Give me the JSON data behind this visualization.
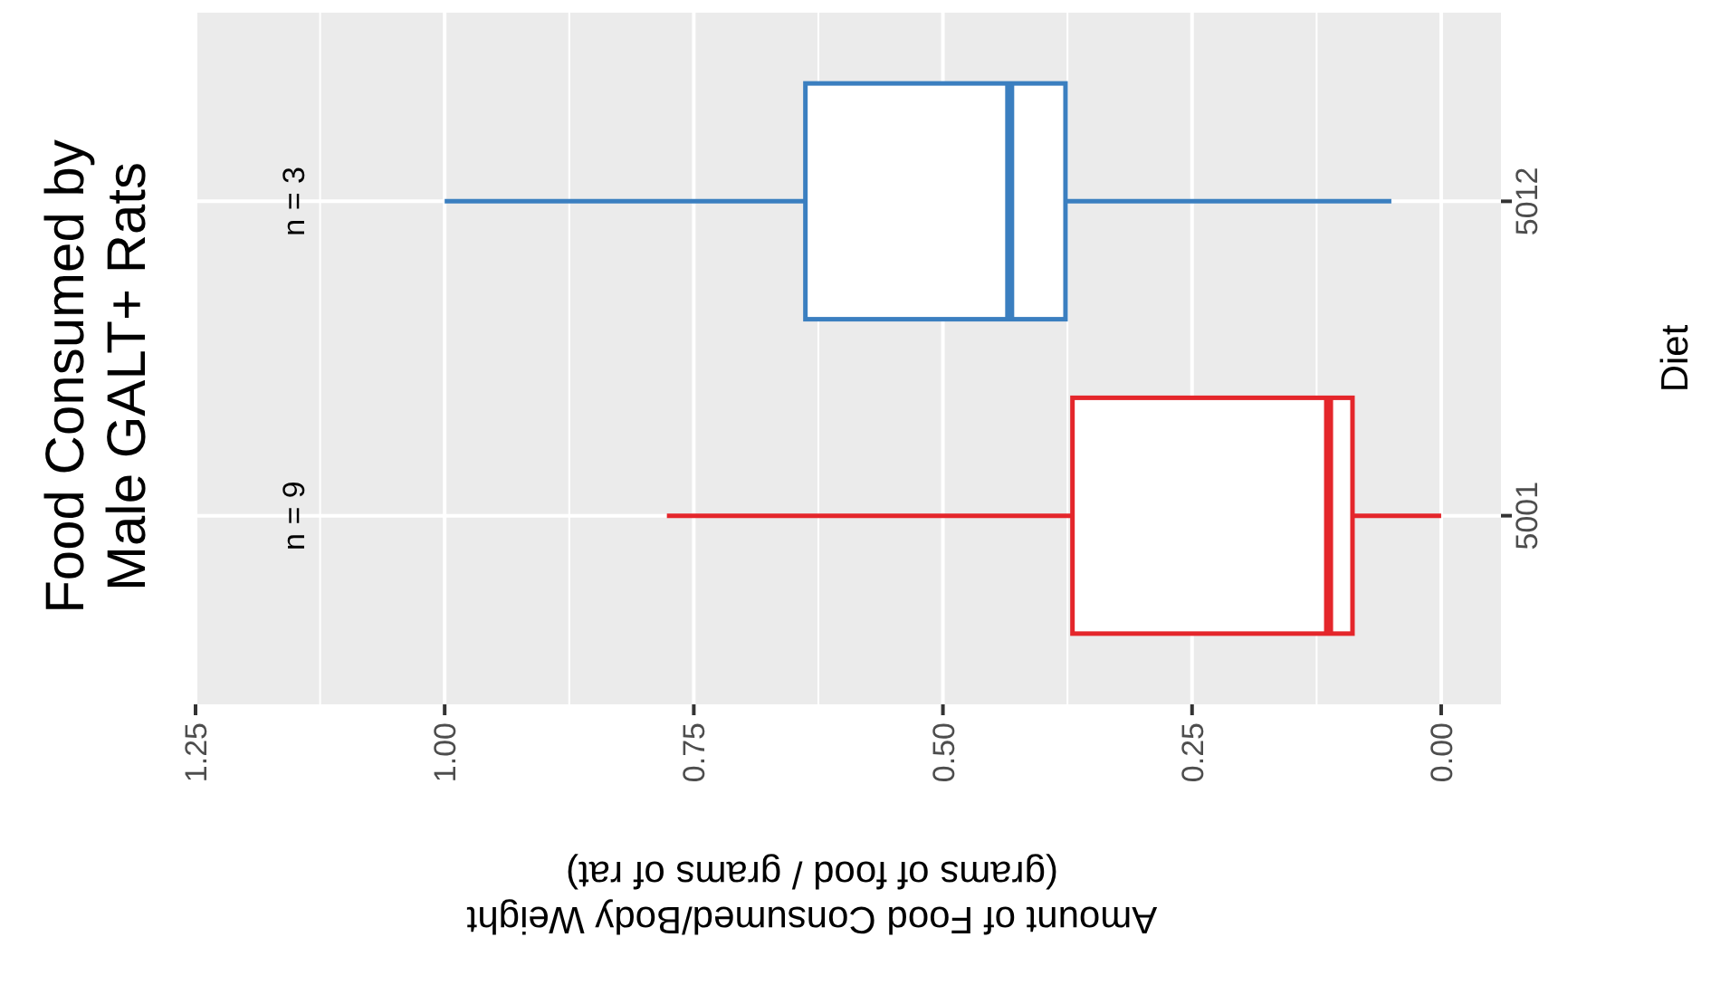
{
  "chart_data": {
    "type": "box",
    "orientation": "horizontal",
    "title": "Food Consumed by\nMale GALT+ Rats",
    "xlabel": "Amount of Food Consumed/Body Weight\n(grams of food / grams of rat)",
    "ylabel": "Diet",
    "categories": [
      "5012",
      "5001"
    ],
    "colors": [
      "#3b7fc0",
      "#e4262b"
    ],
    "boxes": [
      {
        "low": 0.05,
        "q1": 0.377,
        "median": 0.433,
        "q3": 0.638,
        "high": 1.0
      },
      {
        "low": 0.0,
        "q1": 0.089,
        "median": 0.113,
        "q3": 0.37,
        "high": 0.777
      }
    ],
    "xlim": [
      1.25,
      -0.06
    ],
    "xticks": [
      {
        "value": 1.25,
        "label": "1.25"
      },
      {
        "value": 1,
        "label": "1.00"
      },
      {
        "value": 0.75,
        "label": "0.75"
      },
      {
        "value": 0.5,
        "label": "0.50"
      },
      {
        "value": 0.25,
        "label": "0.25"
      },
      {
        "value": 0,
        "label": "0.00"
      }
    ],
    "grid": true,
    "annotations": [
      "n = 3",
      "n = 9"
    ]
  }
}
